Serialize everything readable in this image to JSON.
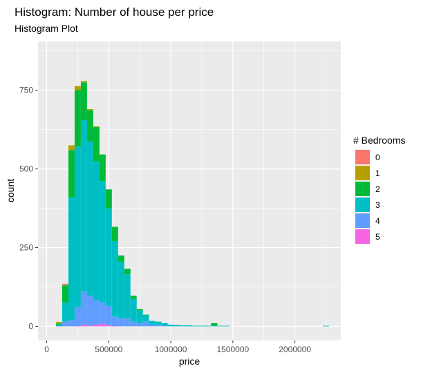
{
  "chart_data": {
    "type": "bar",
    "stacked": true,
    "title": "Histogram: Number of house per price",
    "subtitle": "Histogram Plot",
    "xlabel": "price",
    "ylabel": "count",
    "xlim": [
      -70000,
      2370000
    ],
    "ylim": [
      -45,
      905
    ],
    "x_ticks": [
      0,
      500000,
      1000000,
      1500000,
      2000000
    ],
    "x_tick_labels": [
      "0",
      "500000",
      "1000000",
      "1500000",
      "2000000"
    ],
    "y_ticks": [
      0,
      250,
      500,
      750
    ],
    "y_tick_labels": [
      "0",
      "250",
      "500",
      "750"
    ],
    "bin_width": 50000,
    "grid": true,
    "legend_position": "right",
    "legend": {
      "title": "# Bedrooms",
      "entries": [
        {
          "label": "0",
          "color": "#F8766D"
        },
        {
          "label": "1",
          "color": "#B79F00"
        },
        {
          "label": "2",
          "color": "#00BA38"
        },
        {
          "label": "3",
          "color": "#00BFC4"
        },
        {
          "label": "4",
          "color": "#619CFF"
        },
        {
          "label": "5",
          "color": "#F564E3"
        }
      ]
    },
    "bin_starts": [
      75000,
      125000,
      175000,
      225000,
      275000,
      325000,
      375000,
      425000,
      475000,
      525000,
      575000,
      625000,
      675000,
      725000,
      775000,
      825000,
      875000,
      925000,
      975000,
      1025000,
      1075000,
      1125000,
      1175000,
      1225000,
      1275000,
      1325000,
      1375000,
      1425000,
      1475000,
      1525000,
      2225000
    ],
    "series": [
      {
        "name": "0",
        "color": "#F8766D",
        "values": [
          0,
          3,
          0,
          0,
          0,
          0,
          0,
          0,
          0,
          0,
          0,
          0,
          0,
          0,
          0,
          0,
          0,
          0,
          0,
          0,
          0,
          0,
          0,
          0,
          0,
          0,
          0,
          0,
          0,
          0,
          0
        ]
      },
      {
        "name": "1",
        "color": "#B79F00",
        "values": [
          5,
          2,
          15,
          12,
          4,
          3,
          2,
          0,
          0,
          0,
          0,
          0,
          0,
          0,
          0,
          0,
          0,
          0,
          0,
          0,
          0,
          0,
          0,
          0,
          0,
          0,
          0,
          0,
          0,
          0,
          0
        ]
      },
      {
        "name": "2",
        "color": "#00BA38",
        "values": [
          4,
          55,
          150,
          180,
          120,
          100,
          110,
          85,
          60,
          45,
          20,
          18,
          10,
          5,
          2,
          0,
          0,
          0,
          0,
          0,
          0,
          0,
          0,
          0,
          0,
          8,
          0,
          0,
          0,
          0,
          0
        ]
      },
      {
        "name": "3",
        "color": "#00BFC4",
        "values": [
          4,
          60,
          390,
          510,
          545,
          490,
          440,
          385,
          310,
          240,
          180,
          140,
          72,
          40,
          20,
          12,
          10,
          8,
          5,
          4,
          3,
          3,
          2,
          2,
          2,
          2,
          2,
          2,
          0,
          0,
          2
        ]
      },
      {
        "name": "4",
        "color": "#619CFF",
        "values": [
          1,
          15,
          20,
          60,
          105,
          95,
          78,
          68,
          62,
          30,
          25,
          25,
          15,
          10,
          15,
          5,
          5,
          2,
          0,
          0,
          0,
          0,
          0,
          0,
          0,
          0,
          0,
          0,
          0,
          0,
          0
        ]
      },
      {
        "name": "5",
        "color": "#F564E3",
        "values": [
          0,
          0,
          0,
          1,
          5,
          2,
          5,
          8,
          3,
          1,
          0,
          0,
          0,
          0,
          0,
          0,
          0,
          0,
          0,
          0,
          0,
          0,
          0,
          0,
          0,
          0,
          0,
          0,
          0,
          0,
          0
        ]
      }
    ],
    "colors": {
      "panel_background": "#EBEBEB",
      "grid_major": "#FFFFFF",
      "axis_text": "#4D4D4D",
      "text": "#000000"
    }
  }
}
